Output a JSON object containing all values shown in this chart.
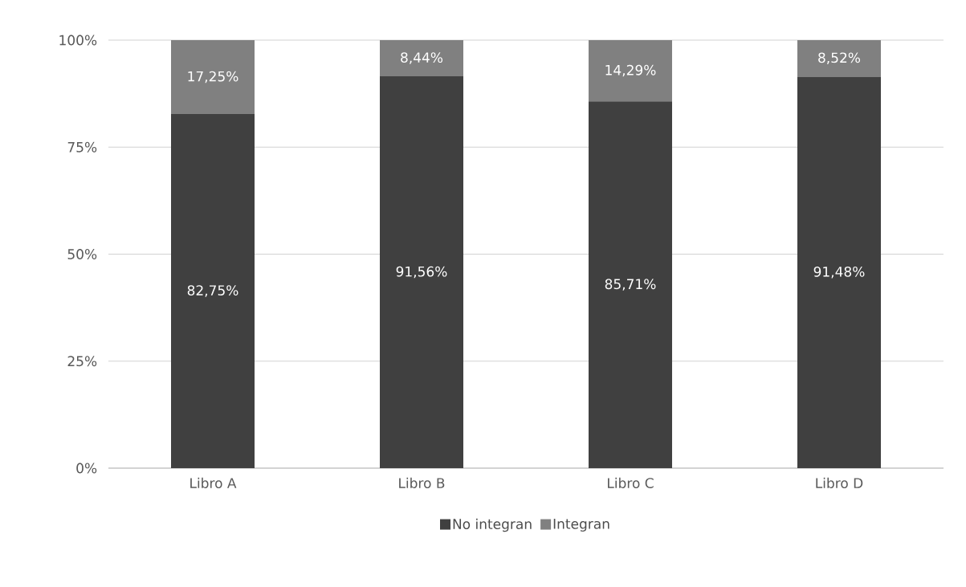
{
  "chart_data": {
    "type": "bar",
    "stacked": true,
    "categories": [
      "Libro A",
      "Libro B",
      "Libro C",
      "Libro D"
    ],
    "series": [
      {
        "name": "No integran",
        "color": "#404040",
        "values": [
          82.75,
          91.56,
          85.71,
          91.48
        ],
        "value_labels": [
          "82,75%",
          "91,56%",
          "85,71%",
          "91,48%"
        ]
      },
      {
        "name": "Integran",
        "color": "#808080",
        "values": [
          17.25,
          8.44,
          14.29,
          8.52
        ],
        "value_labels": [
          "17,25%",
          "8,44%",
          "14,29%",
          "8,52%"
        ]
      }
    ],
    "ylim": [
      0,
      100
    ],
    "yticks": [
      {
        "value": 0,
        "label": "0%"
      },
      {
        "value": 25,
        "label": "25%"
      },
      {
        "value": 50,
        "label": "50%"
      },
      {
        "value": 75,
        "label": "75%"
      },
      {
        "value": 100,
        "label": "100%"
      }
    ],
    "grid": "y",
    "legend": "bottom"
  }
}
